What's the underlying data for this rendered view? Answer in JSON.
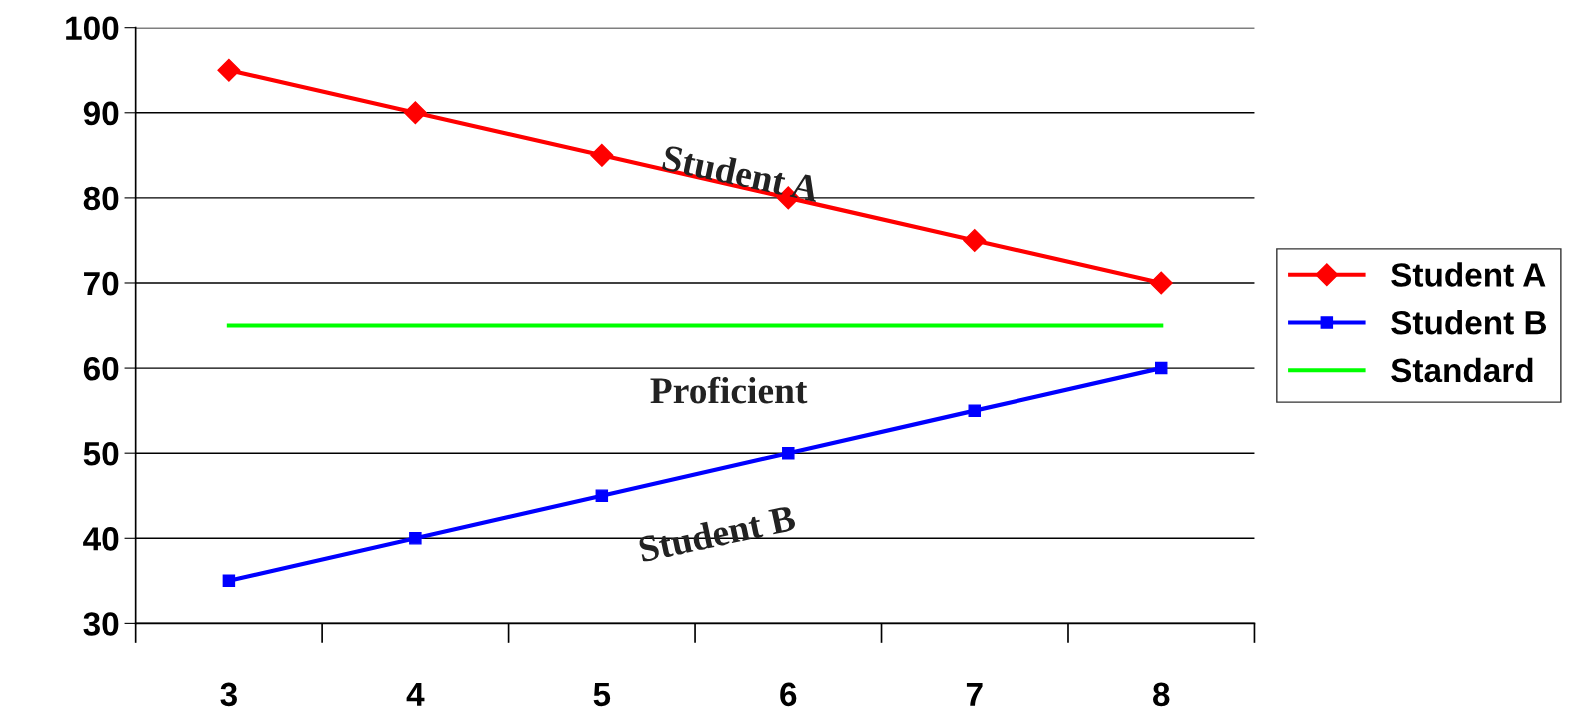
{
  "chart_data": {
    "type": "line",
    "categories": [
      "3",
      "4",
      "5",
      "6",
      "7",
      "8"
    ],
    "series": [
      {
        "name": "Student A",
        "color": "#ff0000",
        "marker": "diamond",
        "values": [
          95,
          90,
          85,
          80,
          75,
          70
        ]
      },
      {
        "name": "Student B",
        "color": "#0000ff",
        "marker": "square",
        "values": [
          35,
          40,
          45,
          50,
          55,
          60
        ]
      },
      {
        "name": "Standard",
        "color": "#00ff00",
        "marker": "none",
        "values": [
          65,
          65,
          65,
          65,
          65,
          65
        ]
      }
    ],
    "ylim": [
      30,
      100
    ],
    "yticks": [
      30,
      40,
      50,
      60,
      70,
      80,
      90,
      100
    ],
    "grid": "y",
    "legend": "right",
    "annotations": [
      "Student A",
      "Proficient",
      "Student B"
    ]
  }
}
